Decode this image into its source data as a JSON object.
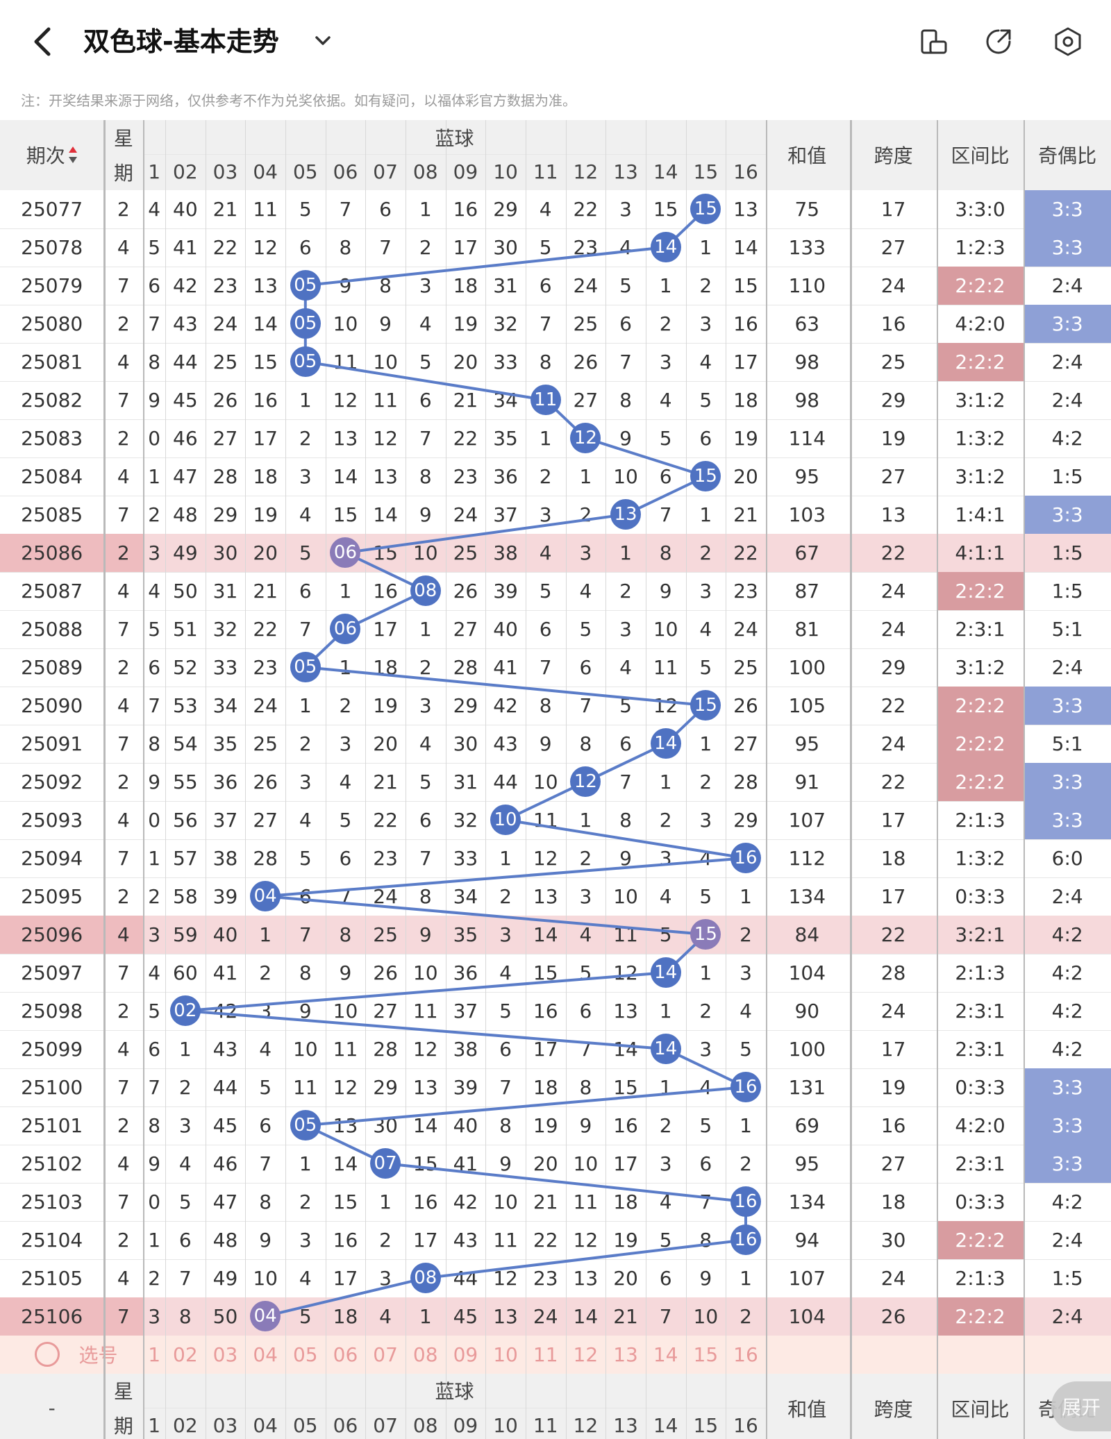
{
  "header": {
    "title": "双色球-基本走势",
    "back_icon": "chevron-left-icon",
    "dropdown_icon": "chevron-down-icon",
    "icons": [
      "phone-rotate-icon",
      "share-icon",
      "settings-icon"
    ]
  },
  "note": "注：开奖结果来源于网络，仅供参考不作为兑奖依据。如有疑问，以福体彩官方数据为准。",
  "table": {
    "col_period": "期次",
    "col_week_top": "星",
    "col_week_bottom": "期",
    "col_blue": "蓝球",
    "col_sum": "和值",
    "col_span": "跨度",
    "col_zone": "区间比",
    "col_oddeven": "奇偶比",
    "blue_numbers": [
      "1",
      "02",
      "03",
      "04",
      "05",
      "06",
      "07",
      "08",
      "09",
      "10",
      "11",
      "12",
      "13",
      "14",
      "15",
      "16"
    ],
    "rows": [
      {
        "period": "25077",
        "week": "2",
        "first": "4",
        "blue": "15",
        "cells": [
          "40",
          "21",
          "11",
          "5",
          "7",
          "6",
          "1",
          "16",
          "29",
          "4",
          "22",
          "3",
          "15",
          "15",
          "13"
        ],
        "sum": "75",
        "span": "17",
        "zone": "3:3:0",
        "oe": "3:3",
        "zone_hl": false,
        "oe_hl": true,
        "row_hl": false
      },
      {
        "period": "25078",
        "week": "4",
        "first": "5",
        "blue": "14",
        "cells": [
          "41",
          "22",
          "12",
          "6",
          "8",
          "7",
          "2",
          "17",
          "30",
          "5",
          "23",
          "4",
          "14",
          "1",
          "14"
        ],
        "sum": "133",
        "span": "27",
        "zone": "1:2:3",
        "oe": "3:3",
        "zone_hl": false,
        "oe_hl": true,
        "row_hl": false
      },
      {
        "period": "25079",
        "week": "7",
        "first": "6",
        "blue": "05",
        "cells": [
          "42",
          "23",
          "13",
          "05",
          "9",
          "8",
          "3",
          "18",
          "31",
          "6",
          "24",
          "5",
          "1",
          "2",
          "15"
        ],
        "sum": "110",
        "span": "24",
        "zone": "2:2:2",
        "oe": "2:4",
        "zone_hl": true,
        "oe_hl": false,
        "row_hl": false
      },
      {
        "period": "25080",
        "week": "2",
        "first": "7",
        "blue": "05",
        "cells": [
          "43",
          "24",
          "14",
          "05",
          "10",
          "9",
          "4",
          "19",
          "32",
          "7",
          "25",
          "6",
          "2",
          "3",
          "16"
        ],
        "sum": "63",
        "span": "16",
        "zone": "4:2:0",
        "oe": "3:3",
        "zone_hl": false,
        "oe_hl": true,
        "row_hl": false
      },
      {
        "period": "25081",
        "week": "4",
        "first": "8",
        "blue": "05",
        "cells": [
          "44",
          "25",
          "15",
          "05",
          "11",
          "10",
          "5",
          "20",
          "33",
          "8",
          "26",
          "7",
          "3",
          "4",
          "17"
        ],
        "sum": "98",
        "span": "25",
        "zone": "2:2:2",
        "oe": "2:4",
        "zone_hl": true,
        "oe_hl": false,
        "row_hl": false
      },
      {
        "period": "25082",
        "week": "7",
        "first": "9",
        "blue": "11",
        "cells": [
          "45",
          "26",
          "16",
          "1",
          "12",
          "11",
          "6",
          "21",
          "34",
          "11",
          "27",
          "8",
          "4",
          "5",
          "18"
        ],
        "sum": "98",
        "span": "29",
        "zone": "3:1:2",
        "oe": "2:4",
        "zone_hl": false,
        "oe_hl": false,
        "row_hl": false
      },
      {
        "period": "25083",
        "week": "2",
        "first": "0",
        "blue": "12",
        "cells": [
          "46",
          "27",
          "17",
          "2",
          "13",
          "12",
          "7",
          "22",
          "35",
          "1",
          "12",
          "9",
          "5",
          "6",
          "19"
        ],
        "sum": "114",
        "span": "19",
        "zone": "1:3:2",
        "oe": "4:2",
        "zone_hl": false,
        "oe_hl": false,
        "row_hl": false
      },
      {
        "period": "25084",
        "week": "4",
        "first": "1",
        "blue": "15",
        "cells": [
          "47",
          "28",
          "18",
          "3",
          "14",
          "13",
          "8",
          "23",
          "36",
          "2",
          "1",
          "10",
          "6",
          "15",
          "20"
        ],
        "sum": "95",
        "span": "27",
        "zone": "3:1:2",
        "oe": "1:5",
        "zone_hl": false,
        "oe_hl": false,
        "row_hl": false
      },
      {
        "period": "25085",
        "week": "7",
        "first": "2",
        "blue": "13",
        "cells": [
          "48",
          "29",
          "19",
          "4",
          "15",
          "14",
          "9",
          "24",
          "37",
          "3",
          "2",
          "13",
          "7",
          "1",
          "21"
        ],
        "sum": "103",
        "span": "13",
        "zone": "1:4:1",
        "oe": "3:3",
        "zone_hl": false,
        "oe_hl": true,
        "row_hl": false
      },
      {
        "period": "25086",
        "week": "2",
        "first": "3",
        "blue": "06",
        "cells": [
          "49",
          "30",
          "20",
          "5",
          "06",
          "15",
          "10",
          "25",
          "38",
          "4",
          "3",
          "1",
          "8",
          "2",
          "22"
        ],
        "sum": "67",
        "span": "22",
        "zone": "4:1:1",
        "oe": "1:5",
        "zone_hl": false,
        "oe_hl": false,
        "row_hl": true
      },
      {
        "period": "25087",
        "week": "4",
        "first": "4",
        "blue": "08",
        "cells": [
          "50",
          "31",
          "21",
          "6",
          "1",
          "16",
          "08",
          "26",
          "39",
          "5",
          "4",
          "2",
          "9",
          "3",
          "23"
        ],
        "sum": "87",
        "span": "24",
        "zone": "2:2:2",
        "oe": "1:5",
        "zone_hl": true,
        "oe_hl": false,
        "row_hl": false
      },
      {
        "period": "25088",
        "week": "7",
        "first": "5",
        "blue": "06",
        "cells": [
          "51",
          "32",
          "22",
          "7",
          "06",
          "17",
          "1",
          "27",
          "40",
          "6",
          "5",
          "3",
          "10",
          "4",
          "24"
        ],
        "sum": "81",
        "span": "24",
        "zone": "2:3:1",
        "oe": "5:1",
        "zone_hl": false,
        "oe_hl": false,
        "row_hl": false
      },
      {
        "period": "25089",
        "week": "2",
        "first": "6",
        "blue": "05",
        "cells": [
          "52",
          "33",
          "23",
          "05",
          "1",
          "18",
          "2",
          "28",
          "41",
          "7",
          "6",
          "4",
          "11",
          "5",
          "25"
        ],
        "sum": "100",
        "span": "29",
        "zone": "3:1:2",
        "oe": "2:4",
        "zone_hl": false,
        "oe_hl": false,
        "row_hl": false
      },
      {
        "period": "25090",
        "week": "4",
        "first": "7",
        "blue": "15",
        "cells": [
          "53",
          "34",
          "24",
          "1",
          "2",
          "19",
          "3",
          "29",
          "42",
          "8",
          "7",
          "5",
          "12",
          "15",
          "26"
        ],
        "sum": "105",
        "span": "22",
        "zone": "2:2:2",
        "oe": "3:3",
        "zone_hl": true,
        "oe_hl": true,
        "row_hl": false
      },
      {
        "period": "25091",
        "week": "7",
        "first": "8",
        "blue": "14",
        "cells": [
          "54",
          "35",
          "25",
          "2",
          "3",
          "20",
          "4",
          "30",
          "43",
          "9",
          "8",
          "6",
          "14",
          "1",
          "27"
        ],
        "sum": "95",
        "span": "24",
        "zone": "2:2:2",
        "oe": "5:1",
        "zone_hl": true,
        "oe_hl": false,
        "row_hl": false
      },
      {
        "period": "25092",
        "week": "2",
        "first": "9",
        "blue": "12",
        "cells": [
          "55",
          "36",
          "26",
          "3",
          "4",
          "21",
          "5",
          "31",
          "44",
          "10",
          "12",
          "7",
          "1",
          "2",
          "28"
        ],
        "sum": "91",
        "span": "22",
        "zone": "2:2:2",
        "oe": "3:3",
        "zone_hl": true,
        "oe_hl": true,
        "row_hl": false
      },
      {
        "period": "25093",
        "week": "4",
        "first": "0",
        "blue": "10",
        "cells": [
          "56",
          "37",
          "27",
          "4",
          "5",
          "22",
          "6",
          "32",
          "10",
          "11",
          "1",
          "8",
          "2",
          "3",
          "29"
        ],
        "sum": "107",
        "span": "17",
        "zone": "2:1:3",
        "oe": "3:3",
        "zone_hl": false,
        "oe_hl": true,
        "row_hl": false
      },
      {
        "period": "25094",
        "week": "7",
        "first": "1",
        "blue": "16",
        "cells": [
          "57",
          "38",
          "28",
          "5",
          "6",
          "23",
          "7",
          "33",
          "1",
          "12",
          "2",
          "9",
          "3",
          "4",
          "16"
        ],
        "sum": "112",
        "span": "18",
        "zone": "1:3:2",
        "oe": "6:0",
        "zone_hl": false,
        "oe_hl": false,
        "row_hl": false
      },
      {
        "period": "25095",
        "week": "2",
        "first": "2",
        "blue": "04",
        "cells": [
          "58",
          "39",
          "04",
          "6",
          "7",
          "24",
          "8",
          "34",
          "2",
          "13",
          "3",
          "10",
          "4",
          "5",
          "1"
        ],
        "sum": "134",
        "span": "17",
        "zone": "0:3:3",
        "oe": "2:4",
        "zone_hl": false,
        "oe_hl": false,
        "row_hl": false
      },
      {
        "period": "25096",
        "week": "4",
        "first": "3",
        "blue": "15",
        "cells": [
          "59",
          "40",
          "1",
          "7",
          "8",
          "25",
          "9",
          "35",
          "3",
          "14",
          "4",
          "11",
          "5",
          "15",
          "2"
        ],
        "sum": "84",
        "span": "22",
        "zone": "3:2:1",
        "oe": "4:2",
        "zone_hl": false,
        "oe_hl": false,
        "row_hl": true
      },
      {
        "period": "25097",
        "week": "7",
        "first": "4",
        "blue": "14",
        "cells": [
          "60",
          "41",
          "2",
          "8",
          "9",
          "26",
          "10",
          "36",
          "4",
          "15",
          "5",
          "12",
          "14",
          "1",
          "3"
        ],
        "sum": "104",
        "span": "28",
        "zone": "2:1:3",
        "oe": "4:2",
        "zone_hl": false,
        "oe_hl": false,
        "row_hl": false
      },
      {
        "period": "25098",
        "week": "2",
        "first": "5",
        "blue": "02",
        "cells": [
          "02",
          "42",
          "3",
          "9",
          "10",
          "27",
          "11",
          "37",
          "5",
          "16",
          "6",
          "13",
          "1",
          "2",
          "4"
        ],
        "sum": "90",
        "span": "24",
        "zone": "2:3:1",
        "oe": "4:2",
        "zone_hl": false,
        "oe_hl": false,
        "row_hl": false
      },
      {
        "period": "25099",
        "week": "4",
        "first": "6",
        "blue": "14",
        "cells": [
          "1",
          "43",
          "4",
          "10",
          "11",
          "28",
          "12",
          "38",
          "6",
          "17",
          "7",
          "14",
          "14",
          "3",
          "5"
        ],
        "sum": "100",
        "span": "17",
        "zone": "2:3:1",
        "oe": "4:2",
        "zone_hl": false,
        "oe_hl": false,
        "row_hl": false
      },
      {
        "period": "25100",
        "week": "7",
        "first": "7",
        "blue": "16",
        "cells": [
          "2",
          "44",
          "5",
          "11",
          "12",
          "29",
          "13",
          "39",
          "7",
          "18",
          "8",
          "15",
          "1",
          "4",
          "16"
        ],
        "sum": "131",
        "span": "19",
        "zone": "0:3:3",
        "oe": "3:3",
        "zone_hl": false,
        "oe_hl": true,
        "row_hl": false
      },
      {
        "period": "25101",
        "week": "2",
        "first": "8",
        "blue": "05",
        "cells": [
          "3",
          "45",
          "6",
          "05",
          "13",
          "30",
          "14",
          "40",
          "8",
          "19",
          "9",
          "16",
          "2",
          "5",
          "1"
        ],
        "sum": "69",
        "span": "16",
        "zone": "4:2:0",
        "oe": "3:3",
        "zone_hl": false,
        "oe_hl": true,
        "row_hl": false
      },
      {
        "period": "25102",
        "week": "4",
        "first": "9",
        "blue": "07",
        "cells": [
          "4",
          "46",
          "7",
          "1",
          "14",
          "07",
          "15",
          "41",
          "9",
          "20",
          "10",
          "17",
          "3",
          "6",
          "2"
        ],
        "sum": "95",
        "span": "27",
        "zone": "2:3:1",
        "oe": "3:3",
        "zone_hl": false,
        "oe_hl": true,
        "row_hl": false
      },
      {
        "period": "25103",
        "week": "7",
        "first": "0",
        "blue": "16",
        "cells": [
          "5",
          "47",
          "8",
          "2",
          "15",
          "1",
          "16",
          "42",
          "10",
          "21",
          "11",
          "18",
          "4",
          "7",
          "16"
        ],
        "sum": "134",
        "span": "18",
        "zone": "0:3:3",
        "oe": "4:2",
        "zone_hl": false,
        "oe_hl": false,
        "row_hl": false
      },
      {
        "period": "25104",
        "week": "2",
        "first": "1",
        "blue": "16",
        "cells": [
          "6",
          "48",
          "9",
          "3",
          "16",
          "2",
          "17",
          "43",
          "11",
          "22",
          "12",
          "19",
          "5",
          "8",
          "16"
        ],
        "sum": "94",
        "span": "30",
        "zone": "2:2:2",
        "oe": "2:4",
        "zone_hl": true,
        "oe_hl": false,
        "row_hl": false
      },
      {
        "period": "25105",
        "week": "4",
        "first": "2",
        "blue": "08",
        "cells": [
          "7",
          "49",
          "10",
          "4",
          "17",
          "3",
          "08",
          "44",
          "12",
          "23",
          "13",
          "20",
          "6",
          "9",
          "1"
        ],
        "sum": "107",
        "span": "24",
        "zone": "2:1:3",
        "oe": "1:5",
        "zone_hl": false,
        "oe_hl": false,
        "row_hl": false
      },
      {
        "period": "25106",
        "week": "7",
        "first": "3",
        "blue": "04",
        "cells": [
          "8",
          "50",
          "04",
          "5",
          "18",
          "4",
          "1",
          "45",
          "13",
          "24",
          "14",
          "21",
          "7",
          "10",
          "2"
        ],
        "sum": "104",
        "span": "26",
        "zone": "2:2:2",
        "oe": "2:4",
        "zone_hl": true,
        "oe_hl": false,
        "row_hl": true
      }
    ],
    "pick_label": "选号",
    "footer_period": "-",
    "expand_label": "展开"
  },
  "colors": {
    "ball": "#4f72c2",
    "ball_hl": "#8a7bb8",
    "line": "#5a7cc8",
    "oe_hl": "#8ea0d6",
    "zone_hl": "#d89ca0",
    "row_hl": "#f6d9db",
    "pick": "#e89a9a"
  }
}
